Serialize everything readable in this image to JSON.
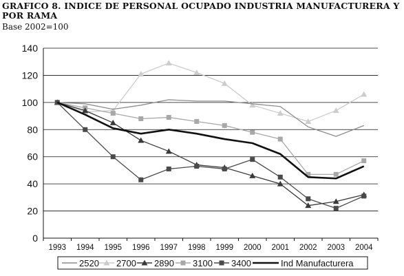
{
  "header": {
    "title": "GRAFICO 8. INDICE DE PERSONAL OCUPADO INDUSTRIA MANUFACTURERA Y POR RAMA",
    "subtitle": "Base 2002=100"
  },
  "chart_data": {
    "type": "line",
    "title": "GRAFICO 8. INDICE DE PERSONAL OCUPADO INDUSTRIA MANUFACTURERA Y POR RAMA",
    "subtitle": "Base 2002=100",
    "xlabel": "",
    "ylabel": "",
    "ylim": [
      0,
      140
    ],
    "yticks": [
      "0",
      "20",
      "40",
      "60",
      "80",
      "100",
      "120",
      "140"
    ],
    "categories": [
      "1993",
      "1994",
      "1995",
      "1996",
      "1997",
      "1998",
      "1999",
      "2000",
      "2001",
      "2002",
      "2003",
      "2004"
    ],
    "grid": "horizontal",
    "legend_position": "bottom",
    "series": [
      {
        "name": "2520",
        "color": "#8c8c8c",
        "marker": "none",
        "values": [
          100,
          99,
          95,
          98,
          102,
          101,
          101,
          99,
          97,
          82,
          75,
          83
        ]
      },
      {
        "name": "2700",
        "color": "#cccccc",
        "marker": "triangle",
        "values": [
          100,
          93,
          94,
          121,
          129,
          122,
          114,
          98,
          92,
          86,
          94,
          106
        ]
      },
      {
        "name": "2890",
        "color": "#3a3a3a",
        "marker": "triangle",
        "values": [
          100,
          94,
          85,
          72,
          64,
          54,
          52,
          46,
          40,
          24,
          27,
          32
        ]
      },
      {
        "name": "3100",
        "color": "#a8a8a8",
        "marker": "square",
        "values": [
          100,
          96,
          92,
          88,
          89,
          86,
          83,
          78,
          73,
          47,
          47,
          57
        ]
      },
      {
        "name": "3400",
        "color": "#4a4a4a",
        "marker": "square",
        "values": [
          100,
          80,
          60,
          43,
          51,
          53,
          51,
          58,
          45,
          29,
          22,
          31
        ]
      },
      {
        "name": "Ind Manufacturera",
        "color": "#111111",
        "marker": "none",
        "values": [
          100,
          91,
          81,
          77,
          80,
          77,
          73,
          70,
          62,
          45,
          44,
          53
        ]
      }
    ]
  }
}
